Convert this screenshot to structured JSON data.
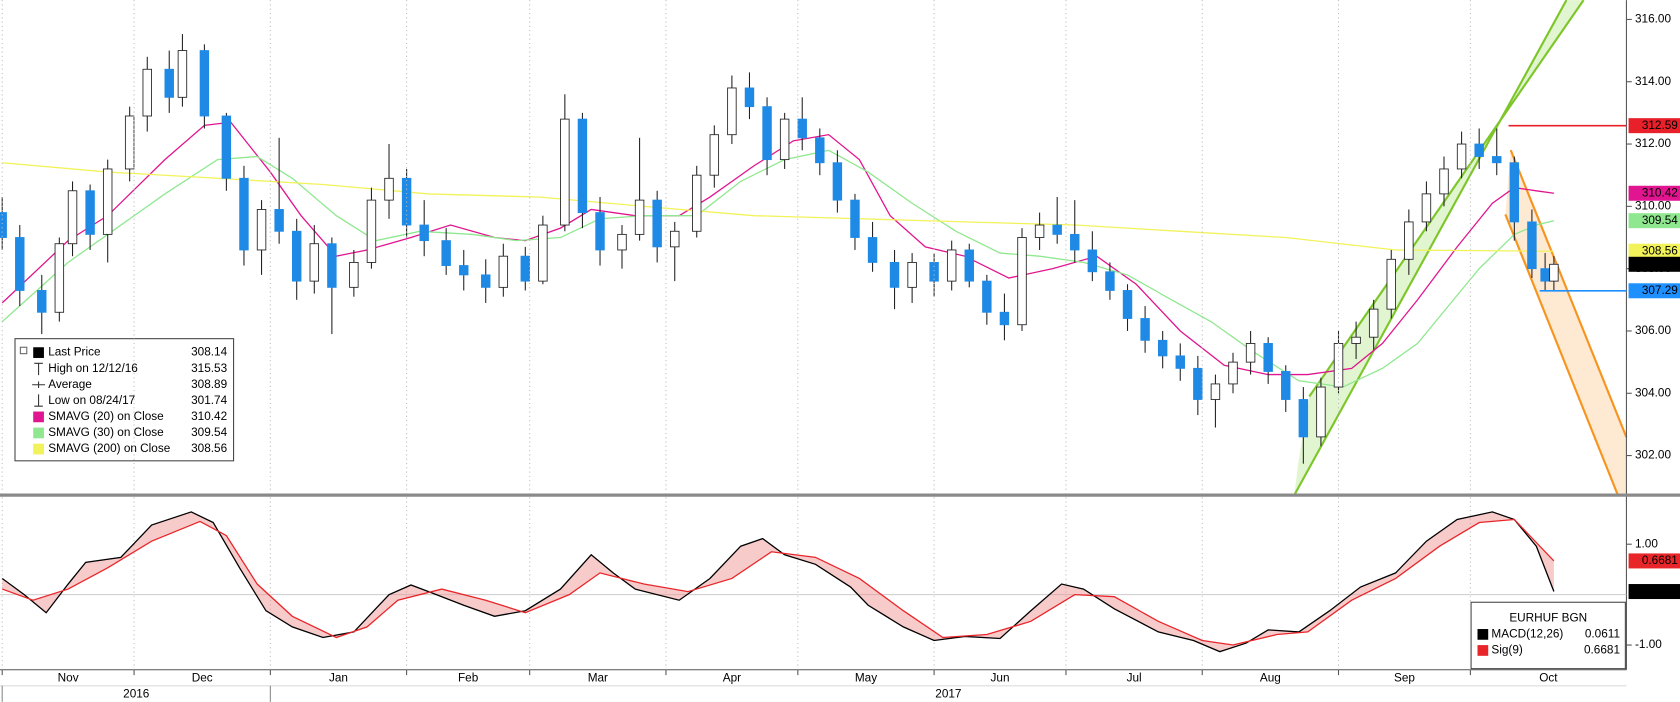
{
  "chart_data": [
    {
      "type": "candlestick",
      "x": [
        0,
        4,
        9,
        13,
        16,
        20,
        24,
        29,
        33,
        38,
        41,
        46,
        51,
        55,
        59,
        63,
        67,
        71,
        75,
        80,
        84,
        88,
        92,
        96,
        101,
        105,
        110,
        114,
        119,
        123,
        128,
        132,
        136,
        141,
        145,
        149,
        153,
        158,
        162,
        166,
        170,
        174,
        178,
        182,
        186,
        190,
        194,
        198,
        203,
        207,
        212,
        216,
        220,
        224,
        228,
        232,
        236,
        240,
        244,
        248,
        252,
        256,
        260,
        264,
        268,
        272,
        276,
        280,
        284,
        288,
        292,
        296,
        300,
        304,
        308,
        312,
        316,
        320,
        324,
        328,
        332,
        336,
        340,
        344,
        348,
        351,
        353
      ],
      "open": [
        309.8,
        309.0,
        307.3,
        306.6,
        308.8,
        310.5,
        309.1,
        311.2,
        312.9,
        314.4,
        313.5,
        315.0,
        312.9,
        310.9,
        308.6,
        309.9,
        309.2,
        307.6,
        308.8,
        307.4,
        308.2,
        310.2,
        310.9,
        309.4,
        308.9,
        308.1,
        307.8,
        307.4,
        308.4,
        307.6,
        309.4,
        312.8,
        309.8,
        308.6,
        309.1,
        310.2,
        308.7,
        309.2,
        311.0,
        312.3,
        313.8,
        313.2,
        311.5,
        312.8,
        312.2,
        311.4,
        310.2,
        309.0,
        308.2,
        307.4,
        308.2,
        307.6,
        308.6,
        307.6,
        306.6,
        306.2,
        309.0,
        309.4,
        309.1,
        308.6,
        307.9,
        307.3,
        306.4,
        305.7,
        305.2,
        304.8,
        303.8,
        304.3,
        305.0,
        305.6,
        304.7,
        303.8,
        302.6,
        304.2,
        305.6,
        305.8,
        306.7,
        308.3,
        309.5,
        310.4,
        311.2,
        312.0,
        311.6,
        311.4,
        309.5,
        308.0,
        307.6
      ],
      "high": [
        310.3,
        309.4,
        307.8,
        309.0,
        310.8,
        310.7,
        311.5,
        313.2,
        314.8,
        315.0,
        315.53,
        315.2,
        313.0,
        311.3,
        310.2,
        312.2,
        309.6,
        309.4,
        309.0,
        308.6,
        310.6,
        312.0,
        311.2,
        310.2,
        309.3,
        308.6,
        308.3,
        308.8,
        308.7,
        309.7,
        313.6,
        313.0,
        310.3,
        309.4,
        312.2,
        310.5,
        309.5,
        311.3,
        312.6,
        314.2,
        314.3,
        313.5,
        313.0,
        313.5,
        312.5,
        311.8,
        310.4,
        309.5,
        308.6,
        308.5,
        308.5,
        308.9,
        308.8,
        307.8,
        307.2,
        309.3,
        309.8,
        310.3,
        310.2,
        309.2,
        308.2,
        307.5,
        306.8,
        306.0,
        305.6,
        305.2,
        304.6,
        305.3,
        306.0,
        305.8,
        304.9,
        304.2,
        304.5,
        306.0,
        306.3,
        307.0,
        308.6,
        309.9,
        310.8,
        311.6,
        312.4,
        312.5,
        312.5,
        311.6,
        309.9,
        308.5,
        308.4
      ],
      "low": [
        308.6,
        306.8,
        305.9,
        306.3,
        308.4,
        308.6,
        308.2,
        310.8,
        312.4,
        313.0,
        313.2,
        312.5,
        310.5,
        308.1,
        307.8,
        308.8,
        307.0,
        307.2,
        305.9,
        307.1,
        308.0,
        309.6,
        309.0,
        308.4,
        307.8,
        307.3,
        306.9,
        307.1,
        307.3,
        307.5,
        309.2,
        309.3,
        308.1,
        308.0,
        308.9,
        308.2,
        307.6,
        309.0,
        310.6,
        312.0,
        312.8,
        311.0,
        311.2,
        311.8,
        311.0,
        309.8,
        308.6,
        307.9,
        306.7,
        306.9,
        307.1,
        307.3,
        307.4,
        306.2,
        305.7,
        306.0,
        308.6,
        308.8,
        308.2,
        307.6,
        307.0,
        306.0,
        305.3,
        304.8,
        304.4,
        303.3,
        302.9,
        304.0,
        304.6,
        304.3,
        303.4,
        301.74,
        302.3,
        304.0,
        305.1,
        305.4,
        306.4,
        307.8,
        309.2,
        310.0,
        310.9,
        311.2,
        311.0,
        308.9,
        307.7,
        307.3,
        307.3
      ],
      "close": [
        309.0,
        307.3,
        306.6,
        308.8,
        310.5,
        309.1,
        311.2,
        312.9,
        314.4,
        313.5,
        315.0,
        312.9,
        310.9,
        308.6,
        309.9,
        309.2,
        307.6,
        308.8,
        307.4,
        308.2,
        310.2,
        310.9,
        309.4,
        308.9,
        308.1,
        307.8,
        307.4,
        308.4,
        307.6,
        309.4,
        312.8,
        309.8,
        308.6,
        309.1,
        310.2,
        308.7,
        309.2,
        311.0,
        312.3,
        313.8,
        313.2,
        311.5,
        312.8,
        312.2,
        311.4,
        310.2,
        309.0,
        308.2,
        307.4,
        308.2,
        307.6,
        308.6,
        307.6,
        306.6,
        306.2,
        309.0,
        309.4,
        309.1,
        308.6,
        307.9,
        307.3,
        306.4,
        305.7,
        305.2,
        304.8,
        303.8,
        304.3,
        305.0,
        305.6,
        304.7,
        303.8,
        302.6,
        304.2,
        305.6,
        305.8,
        306.7,
        308.3,
        309.5,
        310.4,
        311.2,
        312.0,
        311.6,
        311.4,
        309.5,
        308.0,
        307.6,
        308.14
      ],
      "up_color": "#ffffff",
      "down_color": "#1f8ae6",
      "last_color": "#000000",
      "series": [
        {
          "name": "SMAVG (20) on Close",
          "color": "#e0158f",
          "x": [
            0,
            15,
            24,
            37,
            46,
            52,
            61,
            68,
            76,
            83,
            93,
            102,
            112,
            119,
            127,
            134,
            144,
            154,
            161,
            171,
            180,
            188,
            195,
            202,
            210,
            219,
            229,
            239,
            249,
            258,
            268,
            278,
            288,
            297,
            307,
            314,
            322,
            331,
            339,
            344,
            349,
            353
          ],
          "values": [
            306.9,
            308.9,
            309.7,
            311.5,
            312.6,
            312.7,
            311.1,
            309.7,
            308.4,
            308.6,
            309.0,
            309.4,
            309.0,
            308.9,
            309.3,
            309.9,
            309.7,
            309.7,
            310.3,
            311.3,
            312.1,
            312.3,
            311.5,
            309.7,
            308.7,
            308.4,
            307.7,
            308.0,
            308.4,
            307.5,
            306.0,
            304.9,
            304.6,
            304.6,
            304.8,
            305.6,
            307.0,
            308.7,
            310.1,
            310.6,
            310.5,
            310.42
          ]
        },
        {
          "name": "SMAVG (30) on Close",
          "color": "#8fe88f",
          "x": [
            0,
            15,
            24,
            37,
            49,
            58,
            66,
            76,
            85,
            95,
            107,
            117,
            127,
            136,
            146,
            158,
            168,
            178,
            188,
            197,
            207,
            217,
            227,
            236,
            246,
            256,
            266,
            275,
            285,
            295,
            305,
            314,
            322,
            329,
            336,
            344,
            349,
            353
          ],
          "values": [
            306.3,
            308.2,
            309.1,
            310.4,
            311.5,
            311.6,
            310.9,
            309.7,
            308.9,
            309.2,
            309.1,
            308.9,
            309.0,
            309.6,
            309.7,
            309.7,
            310.8,
            311.5,
            311.8,
            311.1,
            310.1,
            309.2,
            308.5,
            308.4,
            308.2,
            307.8,
            307.0,
            306.3,
            305.3,
            304.4,
            304.2,
            304.8,
            305.6,
            306.8,
            308.0,
            309.1,
            309.4,
            309.54
          ]
        },
        {
          "name": "SMAVG (200) on Close",
          "color": "#f2f25a",
          "x": [
            0,
            24,
            49,
            73,
            97,
            122,
            146,
            171,
            195,
            219,
            244,
            268,
            292,
            317,
            353
          ],
          "values": [
            311.4,
            311.1,
            310.9,
            310.7,
            310.4,
            310.3,
            310.0,
            309.7,
            309.6,
            309.5,
            309.4,
            309.2,
            309.0,
            308.6,
            308.56
          ]
        }
      ],
      "legend_stats": {
        "last_label": "Last Price",
        "high_label": "High on 12/12/16",
        "average_label": "Average",
        "average": 308.89,
        "low_label": "Low on 08/24/17"
      },
      "price_lines": [
        {
          "value": 312.59,
          "color": "#e8202a"
        },
        {
          "value": 307.29,
          "color": "#1e90ff"
        }
      ],
      "xlim": [
        -0.5,
        369.5
      ],
      "ylim": [
        300.8,
        316.62
      ],
      "yticks": [
        {
          "value": 302,
          "label": "302.00"
        },
        {
          "value": 304,
          "label": "304.00"
        },
        {
          "value": 306,
          "label": "306.00"
        },
        {
          "value": 308,
          "label": "308.00"
        },
        {
          "value": 310,
          "label": "310.00"
        },
        {
          "value": 312,
          "label": "312.00"
        },
        {
          "value": 314,
          "label": "314.00"
        },
        {
          "value": 316,
          "label": "316.00"
        }
      ]
    },
    {
      "type": "line",
      "title": "EURHUF BGN",
      "series": [
        {
          "name": "MACD(12,26)",
          "color": "#000000",
          "x": [
            0,
            5,
            10,
            15,
            19,
            27,
            34,
            43,
            48,
            54,
            60,
            66,
            73,
            80,
            88,
            93,
            97,
            105,
            112,
            119,
            127,
            134,
            139,
            144,
            154,
            161,
            168,
            173,
            178,
            185,
            193,
            197,
            205,
            212,
            219,
            227,
            234,
            241,
            246,
            253,
            263,
            271,
            277,
            283,
            288,
            295,
            302,
            309,
            317,
            324,
            331,
            339,
            344,
            349,
            353
          ],
          "values": [
            0.32,
            0,
            -0.36,
            0.21,
            0.64,
            0.74,
            1.38,
            1.64,
            1.43,
            0.53,
            -0.32,
            -0.64,
            -0.85,
            -0.74,
            0,
            0.19,
            0.06,
            -0.21,
            -0.43,
            -0.32,
            0.11,
            0.79,
            0.43,
            0.11,
            -0.11,
            0.32,
            0.96,
            1.11,
            0.79,
            0.6,
            0.15,
            -0.21,
            -0.64,
            -0.91,
            -0.83,
            -0.87,
            -0.32,
            0.21,
            0.11,
            -0.28,
            -0.74,
            -0.91,
            -1.13,
            -0.96,
            -0.7,
            -0.74,
            -0.32,
            0.15,
            0.43,
            1.06,
            1.49,
            1.64,
            1.49,
            0.96,
            0.0611
          ]
        },
        {
          "name": "Sig(9)",
          "color": "#e8262a",
          "x": [
            0,
            7,
            15,
            24,
            34,
            45,
            51,
            58,
            66,
            76,
            83,
            90,
            100,
            110,
            119,
            129,
            136,
            146,
            156,
            166,
            175,
            185,
            195,
            205,
            214,
            224,
            234,
            244,
            253,
            263,
            273,
            280,
            290,
            297,
            307,
            317,
            327,
            336,
            344,
            353
          ],
          "values": [
            0.11,
            -0.11,
            0.11,
            0.53,
            1.06,
            1.45,
            1.17,
            0.21,
            -0.43,
            -0.85,
            -0.64,
            -0.11,
            0.11,
            -0.11,
            -0.36,
            0,
            0.43,
            0.21,
            0.06,
            0.32,
            0.85,
            0.74,
            0.32,
            -0.32,
            -0.85,
            -0.79,
            -0.53,
            0,
            -0.04,
            -0.53,
            -0.91,
            -1.0,
            -0.79,
            -0.74,
            -0.11,
            0.32,
            0.96,
            1.43,
            1.49,
            0.6681
          ]
        }
      ],
      "zero_line": 0,
      "xlim": [
        -0.5,
        369.5
      ],
      "ylim": [
        -1.49,
        1.91
      ],
      "yticks": [
        {
          "value": 1,
          "label": "1.00"
        },
        {
          "value": -1,
          "label": "-1.00"
        }
      ],
      "xticks": [
        {
          "value": 0,
          "label": "Nov"
        },
        {
          "value": 30,
          "label": "Dec"
        },
        {
          "value": 61,
          "label": "Jan"
        },
        {
          "value": 92,
          "label": "Feb"
        },
        {
          "value": 120,
          "label": "Mar"
        },
        {
          "value": 151,
          "label": "Apr"
        },
        {
          "value": 181,
          "label": "May"
        },
        {
          "value": 212,
          "label": "Jun"
        },
        {
          "value": 242,
          "label": "Jul"
        },
        {
          "value": 273,
          "label": "Aug"
        },
        {
          "value": 304,
          "label": "Sep"
        },
        {
          "value": 334,
          "label": "Oct"
        }
      ],
      "x_year_ticks": [
        {
          "value": 0,
          "label": "2016"
        },
        {
          "value": 61,
          "label": "2017"
        }
      ]
    }
  ]
}
